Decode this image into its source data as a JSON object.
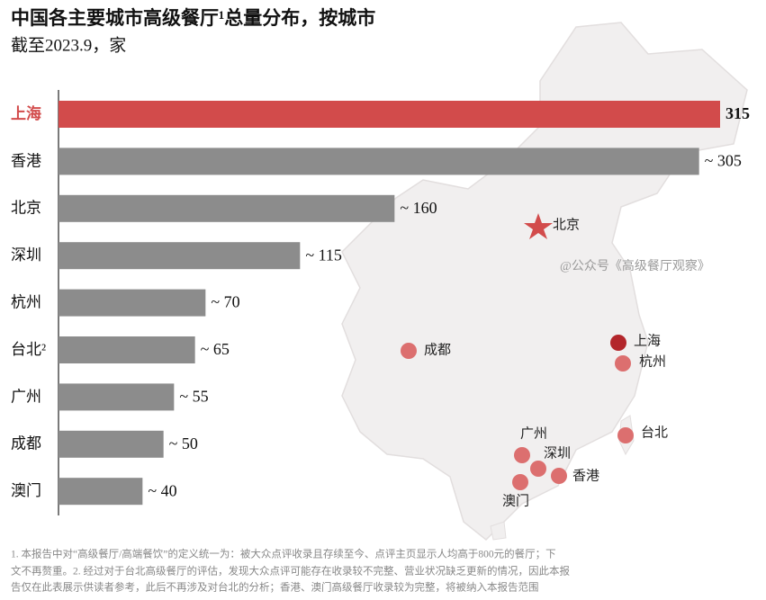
{
  "chart_data": {
    "type": "bar",
    "orientation": "horizontal",
    "title": "中国各主要城市高级餐厅¹总量分布，按城市",
    "subtitle": "截至2023.9，家",
    "categories": [
      "上海",
      "香港",
      "北京",
      "深圳",
      "杭州",
      "台北²",
      "广州",
      "成都",
      "澳门"
    ],
    "values": [
      315,
      305,
      160,
      115,
      70,
      65,
      55,
      50,
      40
    ],
    "value_labels": [
      "315",
      "~ 305",
      "~ 160",
      "~ 115",
      "~ 70",
      "~ 65",
      "~ 55",
      "~ 50",
      "~ 40"
    ],
    "colors": [
      "#d24b4b",
      "#8c8c8c",
      "#8c8c8c",
      "#8c8c8c",
      "#8c8c8c",
      "#8c8c8c",
      "#8c8c8c",
      "#8c8c8c",
      "#8c8c8c"
    ],
    "xlim": [
      0,
      315
    ]
  },
  "map": {
    "labels": [
      "北京",
      "成都",
      "上海",
      "杭州",
      "台北",
      "广州",
      "深圳",
      "香港",
      "澳门"
    ],
    "watermark": "@公众号《高级餐厅观察》"
  },
  "footnote": [
    "1. 本报告中对“高级餐厅/高端餐饮”的定义统一为：被大众点评收录且存续至今、点评主页显示人均高于800元的餐厅；下",
    "文不再赘重。2. 经过对于台北高级餐厅的评估，发现大众点评可能存在收录较不完整、营业状况缺乏更新的情况，因此本报",
    "告仅在此表展示供读者参考，此后不再涉及对台北的分析；香港、澳门高级餐厅收录较为完整，将被纳入本报告范围"
  ]
}
